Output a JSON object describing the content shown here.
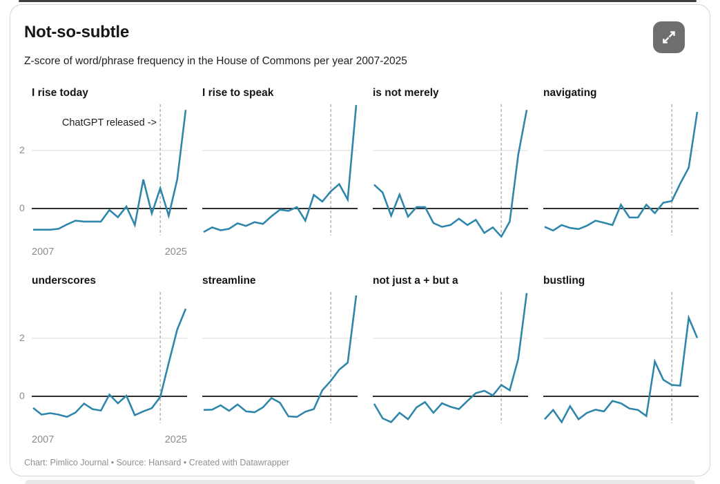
{
  "header": {
    "title": "Not-so-subtle",
    "subtitle": "Z-score of word/phrase frequency in the House of Commons per year 2007-2025"
  },
  "footer": {
    "credit": "Chart: Pimlico Journal • Source: Hansard • Created with Datawrapper"
  },
  "chart_data": {
    "type": "line",
    "layout": "small-multiples 2 rows x 4 columns, shared axes",
    "x": [
      2007,
      2008,
      2009,
      2010,
      2011,
      2012,
      2013,
      2014,
      2015,
      2016,
      2017,
      2018,
      2019,
      2020,
      2021,
      2022,
      2023,
      2024,
      2025
    ],
    "x_tick_labels": [
      "2007",
      "2025"
    ],
    "y_tick_labels": [
      "0",
      "2"
    ],
    "ylim": [
      -1.1,
      3.7
    ],
    "grid": "horizontal line at y=2 only, solid dark baseline at y=0",
    "marker_line": {
      "year": 2022,
      "style": "dashed-vertical",
      "label": "ChatGPT released ->",
      "annotation_panel": 0
    },
    "line_color": "#2e86aa",
    "zero_line_color": "#2e2e2e",
    "grid_color": "#dedede",
    "marker_color": "#aeaeae",
    "panels": [
      {
        "title": "I rise today",
        "values": [
          -0.73,
          -0.73,
          -0.73,
          -0.7,
          -0.55,
          -0.42,
          -0.45,
          -0.45,
          -0.45,
          -0.05,
          -0.3,
          0.07,
          -0.57,
          1.0,
          -0.17,
          0.7,
          -0.25,
          1.0,
          3.4
        ]
      },
      {
        "title": "I rise to speak",
        "values": [
          -0.81,
          -0.65,
          -0.75,
          -0.7,
          -0.51,
          -0.6,
          -0.47,
          -0.53,
          -0.27,
          -0.04,
          -0.08,
          0.05,
          -0.42,
          0.47,
          0.24,
          0.59,
          0.84,
          0.31,
          3.57
        ]
      },
      {
        "title": "is not merely",
        "values": [
          0.82,
          0.55,
          -0.25,
          0.48,
          -0.28,
          0.05,
          0.05,
          -0.5,
          -0.63,
          -0.57,
          -0.35,
          -0.57,
          -0.39,
          -0.84,
          -0.65,
          -0.97,
          -0.45,
          1.85,
          3.4
        ]
      },
      {
        "title": "navigating",
        "values": [
          -0.63,
          -0.76,
          -0.57,
          -0.67,
          -0.71,
          -0.59,
          -0.42,
          -0.49,
          -0.57,
          0.13,
          -0.31,
          -0.31,
          0.13,
          -0.16,
          0.2,
          0.26,
          0.86,
          1.41,
          3.33
        ]
      },
      {
        "title": "underscores",
        "values": [
          -0.4,
          -0.63,
          -0.58,
          -0.63,
          -0.71,
          -0.56,
          -0.25,
          -0.44,
          -0.49,
          0.06,
          -0.24,
          0.02,
          -0.65,
          -0.52,
          -0.41,
          -0.02,
          1.15,
          2.3,
          3.02
        ]
      },
      {
        "title": "streamline",
        "values": [
          -0.47,
          -0.46,
          -0.31,
          -0.5,
          -0.28,
          -0.52,
          -0.55,
          -0.38,
          -0.06,
          -0.22,
          -0.69,
          -0.71,
          -0.53,
          -0.44,
          0.21,
          0.53,
          0.92,
          1.16,
          3.48
        ]
      },
      {
        "title": "not just a + but a",
        "values": [
          -0.26,
          -0.76,
          -0.89,
          -0.57,
          -0.79,
          -0.38,
          -0.2,
          -0.57,
          -0.24,
          -0.36,
          -0.44,
          -0.16,
          0.11,
          0.19,
          0.03,
          0.39,
          0.21,
          1.29,
          3.56
        ]
      },
      {
        "title": "bustling",
        "values": [
          -0.79,
          -0.47,
          -0.89,
          -0.34,
          -0.79,
          -0.57,
          -0.46,
          -0.52,
          -0.16,
          -0.24,
          -0.42,
          -0.47,
          -0.68,
          1.2,
          0.57,
          0.39,
          0.37,
          2.71,
          2.02
        ]
      }
    ]
  }
}
